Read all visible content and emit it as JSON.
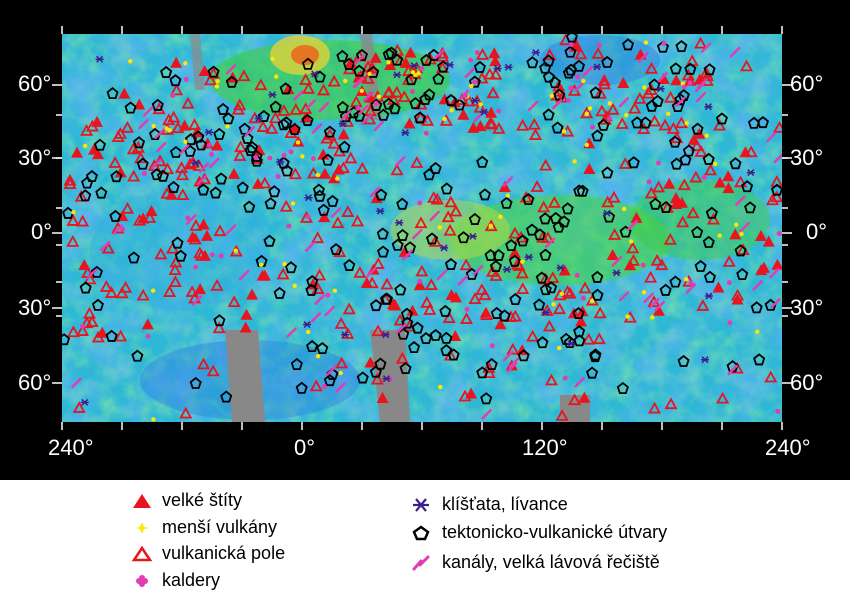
{
  "map": {
    "longitude_labels": [
      "240°",
      "0°",
      "120°",
      "240°"
    ],
    "latitude_labels_left": [
      "60°",
      "30°",
      "0°",
      "30°",
      "60°"
    ],
    "latitude_labels_right": [
      "60°",
      "30°",
      "0°",
      "30°",
      "60°"
    ]
  },
  "legend": {
    "items": [
      {
        "label": "velké štíty",
        "icon": "filled-red-triangle-icon",
        "color": "#e8141e"
      },
      {
        "label": "menší vulkány",
        "icon": "yellow-star-icon",
        "color": "#ffe600"
      },
      {
        "label": "vulkanická pole",
        "icon": "red-triangle-outline-icon",
        "color": "#e8141e"
      },
      {
        "label": "kaldery",
        "icon": "pink-flower-icon",
        "color": "#e03cb4"
      },
      {
        "label": "klíšťata, lívance",
        "icon": "purple-star-icon",
        "color": "#3c1e8c"
      },
      {
        "label": "tektonicko-vulkanické útvary",
        "icon": "black-pentagon-icon",
        "color": "#000000"
      },
      {
        "label": "kanály, velká lávová řečiště",
        "icon": "pink-channel-icon",
        "color": "#e03cb4"
      }
    ]
  }
}
